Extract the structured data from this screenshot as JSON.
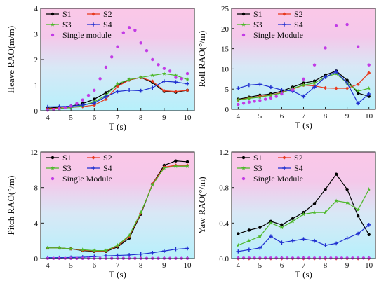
{
  "chart_data": [
    {
      "type": "line",
      "title": "",
      "xlabel": "T (s)",
      "ylabel": "Heave RAO(m/m)",
      "xlim": [
        3.7,
        10.3
      ],
      "ylim": [
        0,
        4
      ],
      "xticks": [
        4,
        5,
        6,
        7,
        8,
        9,
        10
      ],
      "yticks": [
        0,
        1,
        2,
        3,
        4
      ],
      "ytick_labels": [
        "0",
        "1",
        "2",
        "3",
        "4"
      ],
      "legend_position": "top-left",
      "series": [
        {
          "name": "S1",
          "color": "#000000",
          "x": [
            4,
            4.5,
            5,
            5.5,
            6,
            6.5,
            7,
            7.5,
            8,
            8.5,
            9,
            9.5,
            10
          ],
          "values": [
            0.1,
            0.14,
            0.18,
            0.28,
            0.45,
            0.7,
            1.0,
            1.2,
            1.3,
            1.1,
            0.75,
            0.72,
            0.8
          ]
        },
        {
          "name": "S2",
          "color": "#e8391d",
          "x": [
            4,
            4.5,
            5,
            5.5,
            6,
            6.5,
            7,
            7.5,
            8,
            8.5,
            9,
            9.5,
            10
          ],
          "values": [
            0.08,
            0.1,
            0.13,
            0.16,
            0.22,
            0.45,
            0.95,
            1.2,
            1.3,
            1.15,
            0.78,
            0.75,
            0.8
          ]
        },
        {
          "name": "S3",
          "color": "#4db82a",
          "x": [
            4,
            4.5,
            5,
            5.5,
            6,
            6.5,
            7,
            7.5,
            8,
            8.5,
            9,
            9.5,
            10
          ],
          "values": [
            0.05,
            0.08,
            0.12,
            0.2,
            0.35,
            0.6,
            1.05,
            1.22,
            1.3,
            1.38,
            1.45,
            1.38,
            1.22
          ]
        },
        {
          "name": "S4",
          "color": "#1f2fd0",
          "x": [
            4,
            4.5,
            5,
            5.5,
            6,
            6.5,
            7,
            7.5,
            8,
            8.5,
            9,
            9.5,
            10
          ],
          "values": [
            0.15,
            0.16,
            0.18,
            0.22,
            0.3,
            0.55,
            0.75,
            0.8,
            0.78,
            0.9,
            1.15,
            1.12,
            1.05
          ]
        },
        {
          "name": "Single module",
          "color": "#c23be6",
          "markers_only": true,
          "x": [
            4,
            4.25,
            4.5,
            4.75,
            5,
            5.25,
            5.5,
            5.75,
            6,
            6.25,
            6.5,
            6.75,
            7,
            7.25,
            7.5,
            7.75,
            8,
            8.25,
            8.5,
            8.75,
            9,
            9.25,
            9.5,
            9.75,
            10
          ],
          "values": [
            0.02,
            0.05,
            0.08,
            0.12,
            0.18,
            0.28,
            0.42,
            0.6,
            0.8,
            1.25,
            1.7,
            2.1,
            2.5,
            3.05,
            3.25,
            3.15,
            2.65,
            2.35,
            2.0,
            1.8,
            1.65,
            1.55,
            1.3,
            1.25,
            1.45
          ]
        }
      ]
    },
    {
      "type": "line",
      "title": "",
      "xlabel": "T (s)",
      "ylabel": "Roll RAO(°/m)",
      "xlim": [
        3.7,
        10.3
      ],
      "ylim": [
        0,
        25
      ],
      "xticks": [
        4,
        5,
        6,
        7,
        8,
        9,
        10
      ],
      "yticks": [
        0,
        5,
        10,
        15,
        20,
        25
      ],
      "ytick_labels": [
        "0",
        "5",
        "10",
        "15",
        "20",
        "25"
      ],
      "legend_position": "top-left",
      "series": [
        {
          "name": "S1",
          "color": "#000000",
          "x": [
            4,
            4.5,
            5,
            5.5,
            6,
            6.5,
            7,
            7.5,
            8,
            8.5,
            9,
            9.5,
            10
          ],
          "values": [
            2.5,
            3.0,
            3.5,
            3.8,
            4.5,
            5.5,
            6.5,
            7.0,
            8.5,
            9.5,
            7.2,
            4.0,
            3.2
          ]
        },
        {
          "name": "S2",
          "color": "#e8391d",
          "x": [
            4,
            4.5,
            5,
            5.5,
            6,
            6.5,
            7,
            7.5,
            8,
            8.5,
            9,
            9.5,
            10
          ],
          "values": [
            2.3,
            2.8,
            3.2,
            3.5,
            4.2,
            5.0,
            6.0,
            5.8,
            5.3,
            5.2,
            5.2,
            6.2,
            9.0
          ]
        },
        {
          "name": "S3",
          "color": "#4db82a",
          "x": [
            4,
            4.5,
            5,
            5.5,
            6,
            6.5,
            7,
            7.5,
            8,
            8.5,
            9,
            9.5,
            10
          ],
          "values": [
            2.3,
            2.7,
            3.0,
            3.5,
            4.0,
            5.2,
            6.0,
            6.5,
            8.0,
            8.8,
            6.5,
            4.5,
            5.2
          ]
        },
        {
          "name": "S4",
          "color": "#1f2fd0",
          "x": [
            4,
            4.5,
            5,
            5.5,
            6,
            6.5,
            7,
            7.5,
            8,
            8.5,
            9,
            9.5,
            10
          ],
          "values": [
            5.2,
            6.0,
            6.2,
            5.5,
            4.8,
            4.5,
            3.2,
            5.5,
            8.0,
            9.3,
            6.5,
            1.5,
            3.8
          ]
        },
        {
          "name": "Single Module",
          "color": "#c23be6",
          "markers_only": true,
          "x": [
            4,
            4.25,
            4.5,
            4.75,
            5,
            5.25,
            5.5,
            5.75,
            6,
            6.5,
            7,
            7.5,
            8,
            8.5,
            9,
            9.5,
            10
          ],
          "values": [
            1.2,
            1.5,
            1.8,
            2.0,
            2.2,
            2.5,
            2.8,
            3.2,
            3.8,
            4.8,
            7.5,
            11.0,
            15.2,
            20.8,
            21.0,
            15.5,
            11.0
          ]
        }
      ]
    },
    {
      "type": "line",
      "title": "",
      "xlabel": "T (s)",
      "ylabel": "Pitch RAO(°/m)",
      "xlim": [
        3.7,
        10.3
      ],
      "ylim": [
        0,
        12
      ],
      "xticks": [
        4,
        5,
        6,
        7,
        8,
        9,
        10
      ],
      "yticks": [
        0,
        4,
        8,
        12
      ],
      "ytick_labels": [
        "0",
        "4",
        "8",
        "12"
      ],
      "legend_position": "top-left",
      "series": [
        {
          "name": "S1",
          "color": "#000000",
          "x": [
            4,
            4.5,
            5,
            5.5,
            6,
            6.5,
            7,
            7.5,
            8,
            8.5,
            9,
            9.5,
            10
          ],
          "values": [
            1.2,
            1.2,
            1.1,
            0.9,
            0.8,
            0.8,
            1.3,
            2.3,
            5.0,
            8.4,
            10.5,
            11.0,
            10.9
          ]
        },
        {
          "name": "S2",
          "color": "#e8391d",
          "x": [
            4,
            4.5,
            5,
            5.5,
            6,
            6.5,
            7,
            7.5,
            8,
            8.5,
            9,
            9.5,
            10
          ],
          "values": [
            1.2,
            1.2,
            1.1,
            0.95,
            0.85,
            0.85,
            1.4,
            2.5,
            5.1,
            8.4,
            10.3,
            10.5,
            10.5
          ]
        },
        {
          "name": "S3",
          "color": "#4db82a",
          "x": [
            4,
            4.5,
            5,
            5.5,
            6,
            6.5,
            7,
            7.5,
            8,
            8.5,
            9,
            9.5,
            10
          ],
          "values": [
            1.2,
            1.2,
            1.1,
            1.0,
            0.9,
            0.9,
            1.5,
            2.6,
            5.2,
            8.3,
            10.2,
            10.4,
            10.4
          ]
        },
        {
          "name": "S4",
          "color": "#1f2fd0",
          "x": [
            4,
            4.5,
            5,
            5.5,
            6,
            6.5,
            7,
            7.5,
            8,
            8.5,
            9,
            9.5,
            10
          ],
          "values": [
            0.1,
            0.1,
            0.12,
            0.15,
            0.22,
            0.3,
            0.35,
            0.4,
            0.5,
            0.65,
            0.85,
            1.05,
            1.15
          ]
        },
        {
          "name": "Single Module",
          "color": "#c23be6",
          "markers_only": true,
          "x": [
            4,
            4.25,
            4.5,
            4.75,
            5,
            5.25,
            5.5,
            5.75,
            6,
            6.25,
            6.5,
            6.75,
            7,
            7.25,
            7.5,
            7.75,
            8,
            8.25,
            8.5,
            8.75,
            9,
            9.25,
            9.5,
            9.75,
            10
          ],
          "values": [
            0.02,
            0.02,
            0.02,
            0.02,
            0.02,
            0.02,
            0.02,
            0.02,
            0.02,
            0.02,
            0.02,
            0.02,
            0.02,
            0.02,
            0.02,
            0.02,
            0.02,
            0.02,
            0.02,
            0.02,
            0.02,
            0.02,
            0.02,
            0.02,
            0.02
          ]
        }
      ]
    },
    {
      "type": "line",
      "title": "",
      "xlabel": "T (s)",
      "ylabel": "Yaw RAO(°/m)",
      "xlim": [
        3.7,
        10.3
      ],
      "ylim": [
        0,
        1.2
      ],
      "xticks": [
        4,
        5,
        6,
        7,
        8,
        9,
        10
      ],
      "yticks": [
        0,
        0.4,
        0.8,
        1.2
      ],
      "ytick_labels": [
        "0.0",
        "0.4",
        "0.8",
        "1.2"
      ],
      "legend_position": "top-left",
      "series": [
        {
          "name": "S1",
          "color": "#000000",
          "x": [
            4,
            4.5,
            5,
            5.5,
            6,
            6.5,
            7,
            7.5,
            8,
            8.5,
            9,
            9.5,
            10
          ],
          "values": [
            0.28,
            0.32,
            0.35,
            0.42,
            0.38,
            0.45,
            0.52,
            0.62,
            0.78,
            0.95,
            0.78,
            0.48,
            0.27
          ]
        },
        {
          "name": "S2",
          "color": "#e8391d",
          "x": [
            4,
            4.5,
            5,
            5.5,
            6,
            6.5,
            7,
            7.5,
            8,
            8.5,
            9,
            9.5,
            10
          ],
          "values": [
            0.0,
            0.0,
            0.0,
            0.0,
            0.0,
            0.0,
            0.0,
            0.0,
            0.0,
            0.0,
            0.0,
            0.0,
            0.0
          ]
        },
        {
          "name": "S3",
          "color": "#4db82a",
          "x": [
            4,
            4.5,
            5,
            5.5,
            6,
            6.5,
            7,
            7.5,
            8,
            8.5,
            9,
            9.5,
            10
          ],
          "values": [
            0.15,
            0.2,
            0.25,
            0.4,
            0.35,
            0.42,
            0.5,
            0.52,
            0.52,
            0.65,
            0.63,
            0.55,
            0.78
          ]
        },
        {
          "name": "S4",
          "color": "#1f2fd0",
          "x": [
            4,
            4.5,
            5,
            5.5,
            6,
            6.5,
            7,
            7.5,
            8,
            8.5,
            9,
            9.5,
            10
          ],
          "values": [
            0.08,
            0.1,
            0.12,
            0.25,
            0.18,
            0.2,
            0.22,
            0.2,
            0.15,
            0.17,
            0.23,
            0.28,
            0.38
          ]
        },
        {
          "name": "Single Module",
          "color": "#c23be6",
          "markers_only": true,
          "x": [
            4,
            4.25,
            4.5,
            4.75,
            5,
            5.25,
            5.5,
            5.75,
            6,
            6.25,
            6.5,
            6.75,
            7,
            7.25,
            7.5,
            7.75,
            8,
            8.25,
            8.5,
            8.75,
            9,
            9.25,
            9.5,
            9.75,
            10
          ],
          "values": [
            0.005,
            0.005,
            0.005,
            0.005,
            0.005,
            0.005,
            0.005,
            0.005,
            0.005,
            0.005,
            0.005,
            0.005,
            0.005,
            0.005,
            0.005,
            0.005,
            0.005,
            0.005,
            0.005,
            0.005,
            0.005,
            0.005,
            0.005,
            0.005,
            0.005
          ]
        }
      ]
    }
  ]
}
